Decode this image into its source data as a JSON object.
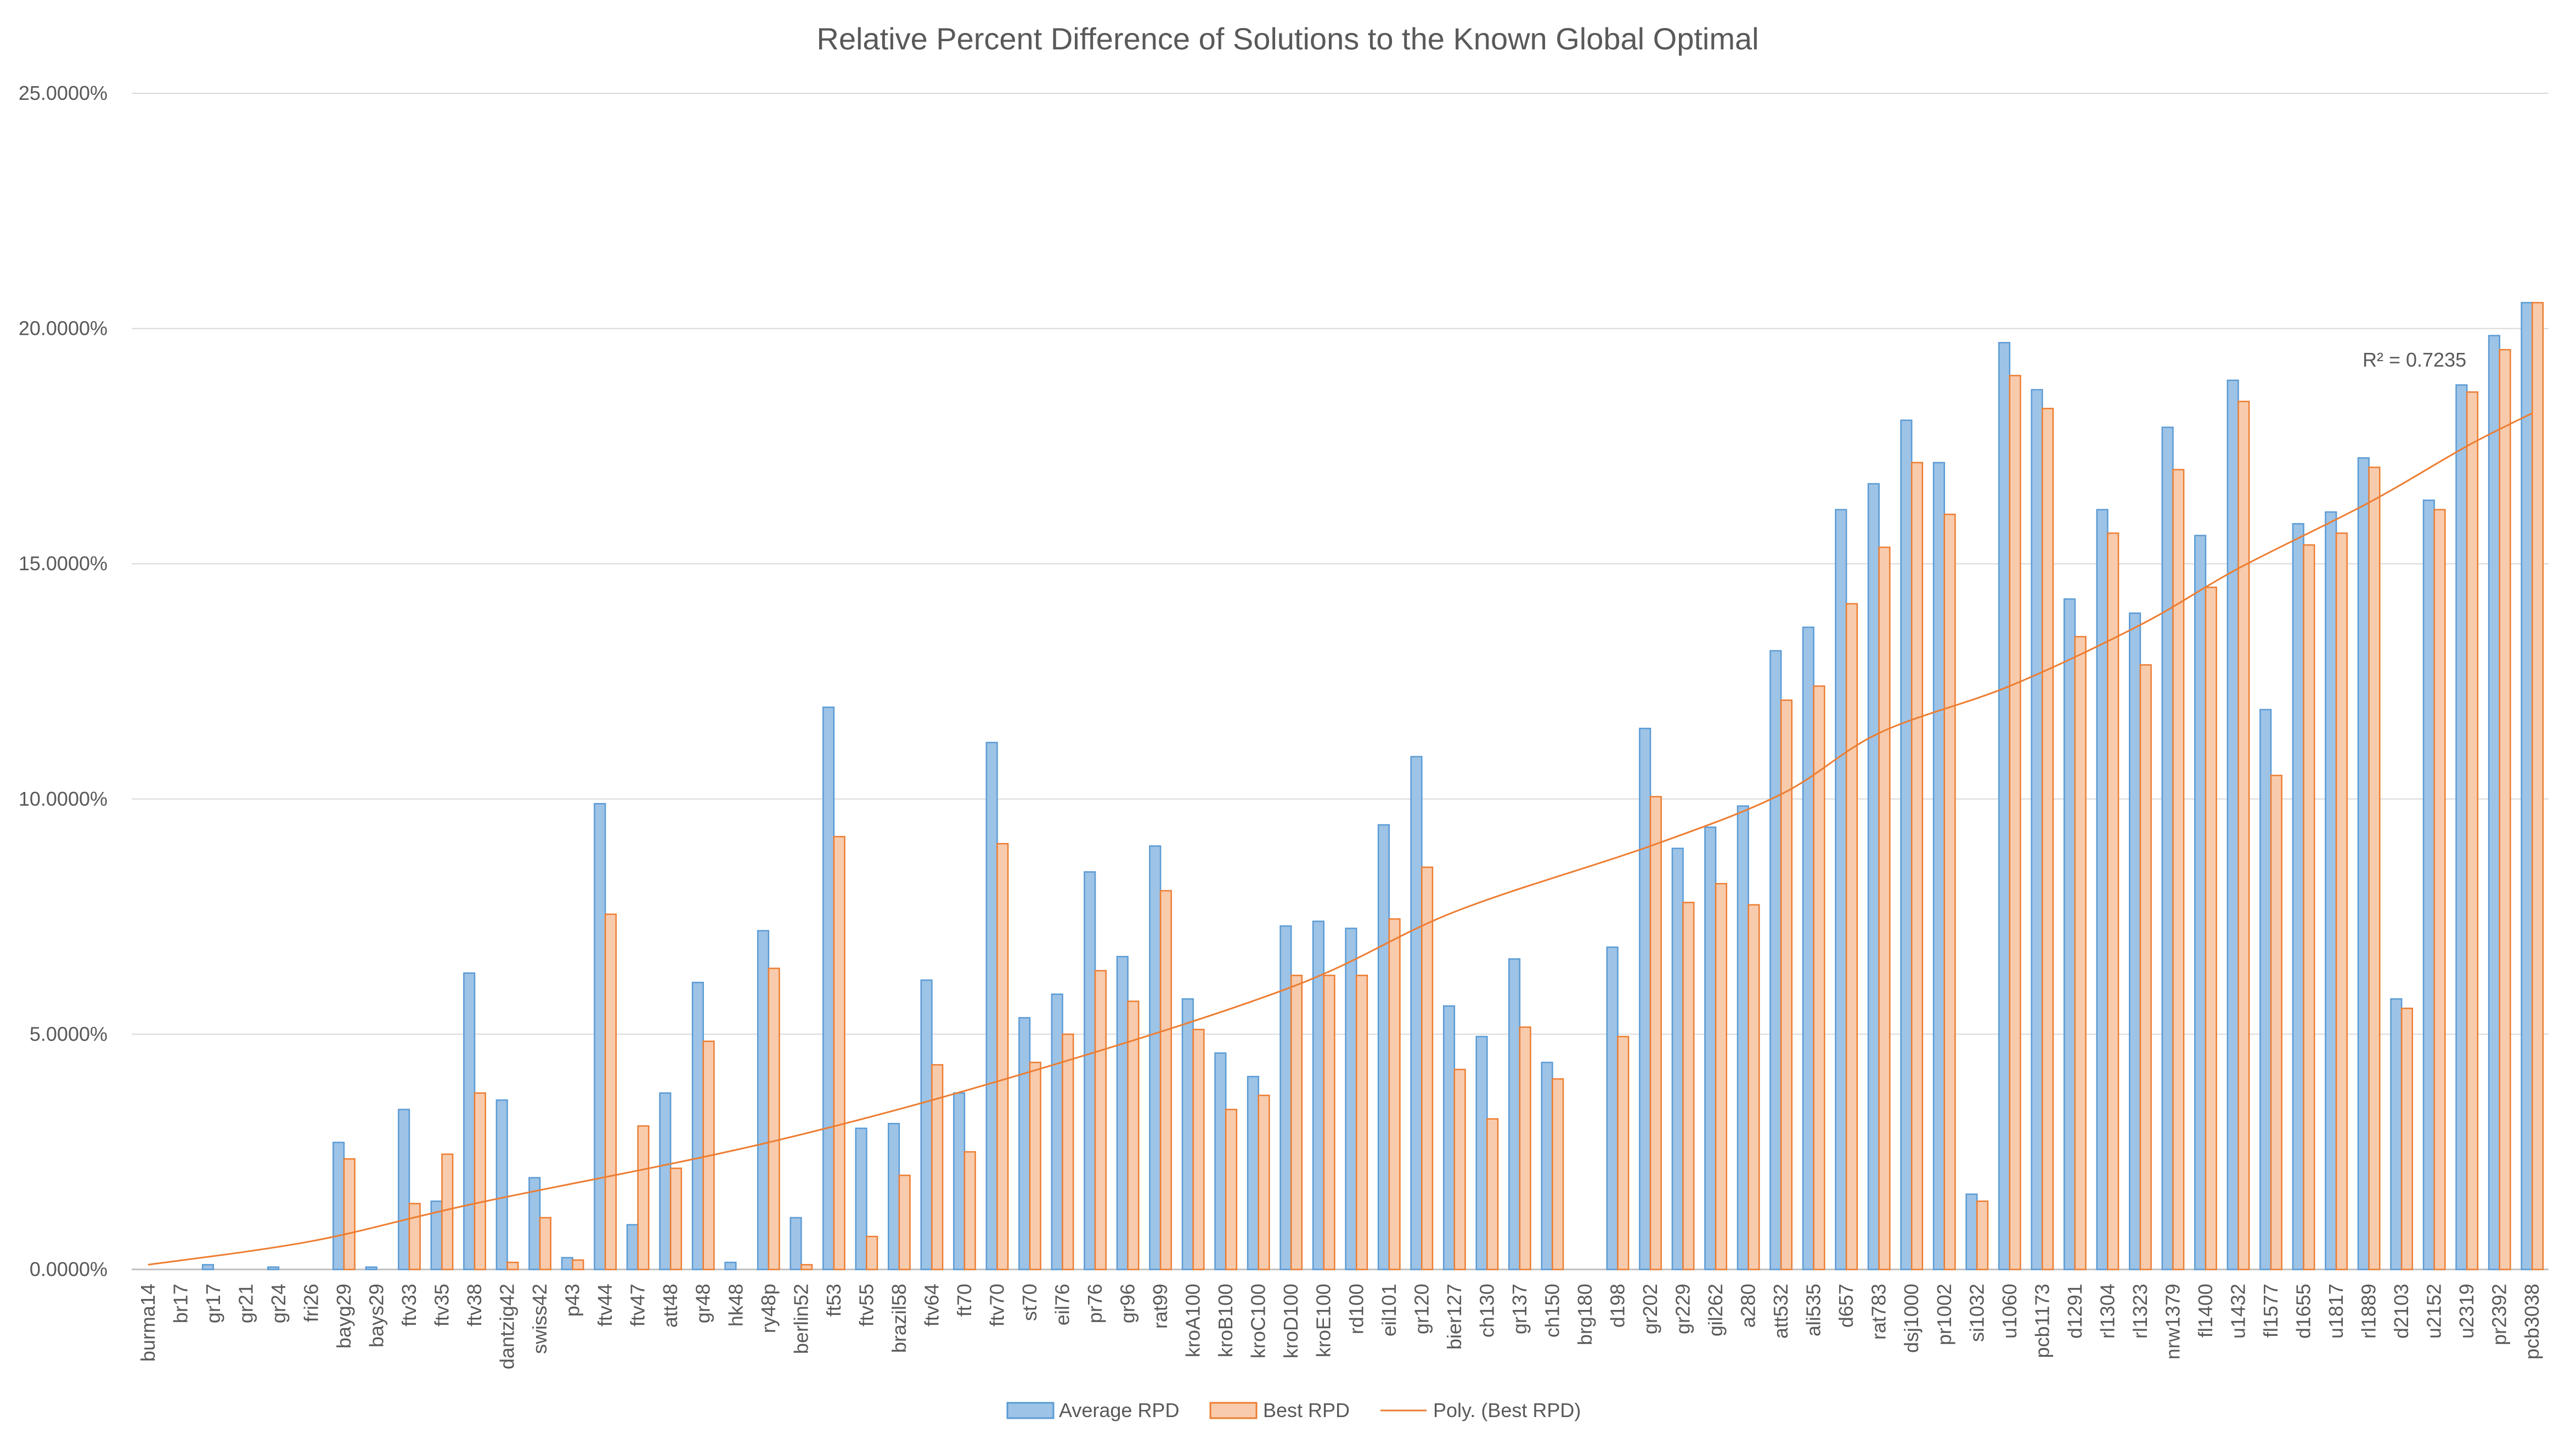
{
  "chart_data": {
    "type": "bar",
    "title": "Relative Percent Difference of Solutions to the Known Global Optimal",
    "xlabel": "",
    "ylabel": "",
    "ylim": [
      0,
      25
    ],
    "yticks": [
      "0.0000%",
      "5.0000%",
      "10.0000%",
      "15.0000%",
      "20.0000%",
      "25.0000%"
    ],
    "grid": true,
    "legend_position": "bottom",
    "categories": [
      "burma14",
      "br17",
      "gr17",
      "gr21",
      "gr24",
      "fri26",
      "bayg29",
      "bays29",
      "ftv33",
      "ftv35",
      "ftv38",
      "dantzig42",
      "swiss42",
      "p43",
      "ftv44",
      "ftv47",
      "att48",
      "gr48",
      "hk48",
      "ry48p",
      "berlin52",
      "ft53",
      "ftv55",
      "brazil58",
      "ftv64",
      "ft70",
      "ftv70",
      "st70",
      "eil76",
      "pr76",
      "gr96",
      "rat99",
      "kroA100",
      "kroB100",
      "kroC100",
      "kroD100",
      "kroE100",
      "rd100",
      "eil101",
      "gr120",
      "bier127",
      "ch130",
      "gr137",
      "ch150",
      "brg180",
      "d198",
      "gr202",
      "gr229",
      "gil262",
      "a280",
      "att532",
      "ali535",
      "d657",
      "rat783",
      "dsj1000",
      "pr1002",
      "si1032",
      "u1060",
      "pcb1173",
      "d1291",
      "rl1304",
      "rl1323",
      "nrw1379",
      "fl1400",
      "u1432",
      "fl1577",
      "d1655",
      "u1817",
      "rl1889",
      "d2103",
      "u2152",
      "u2319",
      "pr2392",
      "pcb3038"
    ],
    "series": [
      {
        "name": "Average RPD",
        "color": "#9DC3E6",
        "stroke": "#5B9BD5",
        "values": [
          0.0,
          0.0,
          0.1,
          0.0,
          0.05,
          0.0,
          2.7,
          0.05,
          3.4,
          1.45,
          6.3,
          3.6,
          1.95,
          0.25,
          9.9,
          0.95,
          3.75,
          6.1,
          0.15,
          7.2,
          1.1,
          11.95,
          3.0,
          3.1,
          6.15,
          3.75,
          11.2,
          5.35,
          5.85,
          8.45,
          6.65,
          9.0,
          5.75,
          4.6,
          4.1,
          7.3,
          7.4,
          7.25,
          9.45,
          10.9,
          5.6,
          4.95,
          6.6,
          4.4,
          0.0,
          6.85,
          11.5,
          8.95,
          9.4,
          9.85,
          13.15,
          13.65,
          16.15,
          16.7,
          18.05,
          17.15,
          1.6,
          19.7,
          18.7,
          14.25,
          16.15,
          13.95,
          17.9,
          15.6,
          18.9,
          11.9,
          15.85,
          16.1,
          17.25,
          5.75,
          16.35,
          18.8,
          19.85,
          20.55
        ]
      },
      {
        "name": "Best RPD",
        "color": "#F8CBAD",
        "stroke": "#ED7D31",
        "values": [
          0.0,
          0.0,
          0.0,
          0.0,
          0.0,
          0.0,
          2.35,
          0.0,
          1.4,
          2.45,
          3.75,
          0.15,
          1.1,
          0.2,
          7.55,
          3.05,
          2.15,
          4.85,
          0.0,
          6.4,
          0.1,
          9.2,
          0.7,
          2.0,
          4.35,
          2.5,
          9.05,
          4.4,
          5.0,
          6.35,
          5.7,
          8.05,
          5.1,
          3.4,
          3.7,
          6.25,
          6.25,
          6.25,
          7.45,
          8.55,
          4.25,
          3.2,
          5.15,
          4.05,
          0.0,
          4.95,
          10.05,
          7.8,
          8.2,
          7.75,
          12.1,
          12.4,
          14.15,
          15.35,
          17.15,
          16.05,
          1.45,
          19.0,
          18.3,
          13.45,
          15.65,
          12.85,
          17.0,
          14.5,
          18.45,
          10.5,
          15.4,
          15.65,
          17.05,
          5.55,
          16.15,
          18.65,
          19.55,
          20.55
        ]
      }
    ],
    "trendline": {
      "name": "Poly. (Best RPD)",
      "color": "#ED7D31",
      "type": "polynomial",
      "points": [
        {
          "x": "burma14",
          "y": 0.1
        },
        {
          "x": "fri26",
          "y": 0.6
        },
        {
          "x": "ftv38",
          "y": 1.4
        },
        {
          "x": "ry48p",
          "y": 2.7
        },
        {
          "x": "st70",
          "y": 4.2
        },
        {
          "x": "kroD100",
          "y": 6.0
        },
        {
          "x": "bier127",
          "y": 7.6
        },
        {
          "x": "gr202",
          "y": 9.0
        },
        {
          "x": "att532",
          "y": 10.1
        },
        {
          "x": "rat783",
          "y": 11.4
        },
        {
          "x": "u1060",
          "y": 12.4
        },
        {
          "x": "rl1323",
          "y": 13.7
        },
        {
          "x": "u1432",
          "y": 14.9
        },
        {
          "x": "rl1889",
          "y": 16.3
        },
        {
          "x": "u2319",
          "y": 17.5
        },
        {
          "x": "pcb3038",
          "y": 18.2
        }
      ],
      "r_squared_label": "R² = 0.7235"
    }
  }
}
